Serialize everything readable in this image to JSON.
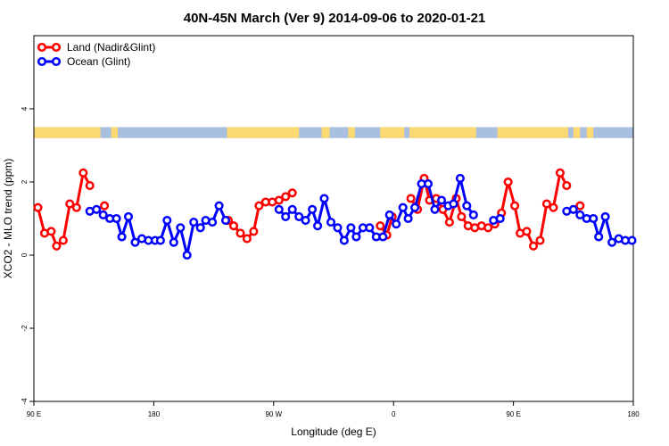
{
  "chart_data": {
    "type": "line",
    "title": "40N-45N March (Ver 9)   2014-09-06 to 2020-01-21",
    "xlabel": "Longitude (deg E)",
    "ylabel": "XCO2 - MLO trend (ppm)",
    "xlim": [
      90,
      540
    ],
    "ylim": [
      -4,
      6
    ],
    "x_ticks": [
      {
        "value": 90,
        "label": "90 E"
      },
      {
        "value": 180,
        "label": "180"
      },
      {
        "value": 270,
        "label": "90 W"
      },
      {
        "value": 360,
        "label": "0"
      },
      {
        "value": 450,
        "label": "90 E"
      },
      {
        "value": 540,
        "label": "180"
      }
    ],
    "y_ticks": [
      {
        "value": -4,
        "label": "-4"
      },
      {
        "value": -2,
        "label": "-2"
      },
      {
        "value": 0,
        "label": "0"
      },
      {
        "value": 2,
        "label": "2"
      },
      {
        "value": 4,
        "label": "4"
      }
    ],
    "grid": false,
    "legend_position": "top-left",
    "land_ocean_bar": {
      "y_range": [
        3.2,
        3.5
      ],
      "land_color": "#fcd972",
      "ocean_color": "#a9bfe0",
      "land_segments": [
        [
          90,
          140
        ],
        [
          148,
          153
        ],
        [
          235,
          289
        ],
        [
          306,
          312
        ],
        [
          326,
          331
        ],
        [
          350,
          368
        ],
        [
          372,
          422
        ],
        [
          438,
          491
        ],
        [
          495,
          500
        ],
        [
          505,
          510
        ]
      ]
    },
    "series": [
      {
        "name": "Land (Nadir&Glint)",
        "color": "#ff0000",
        "segments": [
          [
            [
              93,
              1.3
            ],
            [
              98,
              0.6
            ],
            [
              103,
              0.65
            ],
            [
              107,
              0.25
            ],
            [
              112,
              0.4
            ],
            [
              117,
              1.4
            ],
            [
              122,
              1.3
            ],
            [
              127,
              2.25
            ],
            [
              132,
              1.9
            ]
          ],
          [
            [
              143,
              1.35
            ]
          ],
          [
            [
              236,
              0.95
            ],
            [
              240,
              0.8
            ],
            [
              245,
              0.6
            ],
            [
              250,
              0.45
            ],
            [
              255,
              0.65
            ],
            [
              259,
              1.35
            ],
            [
              264,
              1.45
            ],
            [
              269,
              1.45
            ],
            [
              274,
              1.5
            ],
            [
              279,
              1.6
            ],
            [
              284,
              1.7
            ]
          ],
          [
            [
              350,
              0.8
            ],
            [
              355,
              0.55
            ],
            [
              359,
              1.05
            ]
          ],
          [
            [
              373,
              1.55
            ],
            [
              378,
              1.25
            ],
            [
              383,
              2.1
            ],
            [
              387,
              1.5
            ],
            [
              392,
              1.55
            ],
            [
              397,
              1.25
            ],
            [
              402,
              0.9
            ],
            [
              407,
              1.55
            ],
            [
              411,
              1.05
            ],
            [
              416,
              0.8
            ],
            [
              421,
              0.75
            ],
            [
              426,
              0.8
            ],
            [
              431,
              0.75
            ],
            [
              436,
              0.85
            ],
            [
              441,
              1.15
            ],
            [
              446,
              2.0
            ],
            [
              451,
              1.35
            ],
            [
              455,
              0.6
            ],
            [
              460,
              0.65
            ],
            [
              465,
              0.25
            ],
            [
              470,
              0.4
            ],
            [
              475,
              1.4
            ],
            [
              480,
              1.3
            ],
            [
              485,
              2.25
            ],
            [
              490,
              1.9
            ]
          ],
          [
            [
              500,
              1.35
            ]
          ]
        ]
      },
      {
        "name": "Ocean (Glint)",
        "color": "#0000ff",
        "segments": [
          [
            [
              132,
              1.2
            ],
            [
              137,
              1.25
            ],
            [
              142,
              1.1
            ],
            [
              147,
              1.0
            ],
            [
              152,
              1.0
            ],
            [
              156,
              0.5
            ],
            [
              161,
              1.05
            ],
            [
              166,
              0.35
            ],
            [
              171,
              0.45
            ],
            [
              176,
              0.4
            ],
            [
              181,
              0.4
            ],
            [
              185,
              0.4
            ],
            [
              190,
              0.95
            ],
            [
              195,
              0.35
            ],
            [
              200,
              0.75
            ],
            [
              205,
              0.0
            ],
            [
              210,
              0.9
            ],
            [
              215,
              0.75
            ],
            [
              219,
              0.95
            ],
            [
              224,
              0.9
            ],
            [
              229,
              1.35
            ],
            [
              234,
              0.95
            ]
          ],
          [
            [
              274,
              1.25
            ],
            [
              279,
              1.05
            ],
            [
              284,
              1.25
            ],
            [
              289,
              1.05
            ],
            [
              294,
              0.95
            ],
            [
              299,
              1.25
            ],
            [
              303,
              0.8
            ],
            [
              308,
              1.55
            ],
            [
              313,
              0.9
            ],
            [
              318,
              0.75
            ],
            [
              323,
              0.4
            ],
            [
              328,
              0.75
            ],
            [
              332,
              0.5
            ],
            [
              337,
              0.75
            ],
            [
              342,
              0.75
            ],
            [
              347,
              0.5
            ],
            [
              352,
              0.5
            ],
            [
              357,
              1.1
            ],
            [
              362,
              0.85
            ],
            [
              367,
              1.3
            ],
            [
              371,
              1.0
            ],
            [
              376,
              1.3
            ],
            [
              381,
              1.95
            ],
            [
              386,
              1.95
            ],
            [
              391,
              1.25
            ],
            [
              396,
              1.5
            ],
            [
              401,
              1.35
            ],
            [
              405,
              1.4
            ],
            [
              410,
              2.1
            ],
            [
              415,
              1.35
            ],
            [
              420,
              1.1
            ]
          ],
          [
            [
              435,
              0.95
            ],
            [
              440,
              1.0
            ]
          ],
          [
            [
              490,
              1.2
            ],
            [
              495,
              1.25
            ],
            [
              500,
              1.1
            ],
            [
              505,
              1.0
            ],
            [
              510,
              1.0
            ],
            [
              514,
              0.5
            ],
            [
              519,
              1.05
            ],
            [
              524,
              0.35
            ],
            [
              529,
              0.45
            ],
            [
              534,
              0.4
            ],
            [
              539,
              0.4
            ]
          ]
        ]
      }
    ]
  }
}
